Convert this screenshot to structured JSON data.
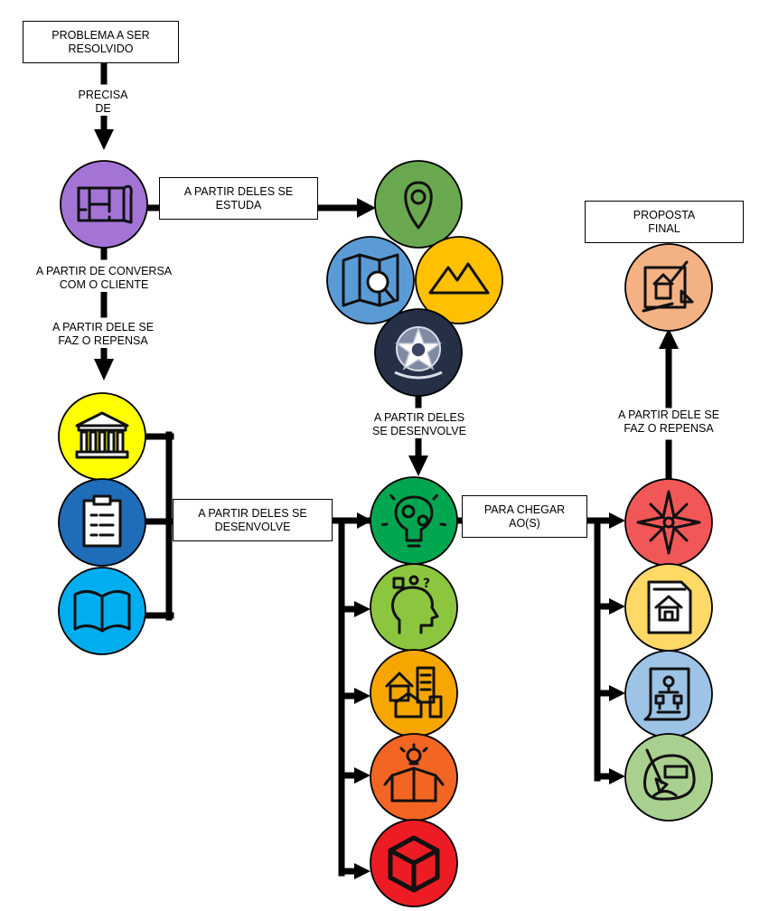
{
  "boxes": {
    "problem": [
      "PROBLEMA A SER",
      "RESOLVIDO"
    ],
    "studies": [
      "A  PARTIR DELES SE",
      "ESTUDA"
    ],
    "develops": [
      "A  PARTIR DELES SE",
      "DESENVOLVE"
    ],
    "reach": [
      "PARA CHEGAR",
      "AO(S)"
    ],
    "final": [
      "PROPOSTA",
      "FINAL"
    ]
  },
  "labels": {
    "needs": [
      "PRECISA",
      "DE"
    ],
    "client": [
      "A PARTIR DE CONVERSA",
      "COM O CLIENTE"
    ],
    "rethink_left": [
      "A  PARTIR DELE SE",
      "FAZ O REPENSA"
    ],
    "develops_mid": [
      "A  PARTIR DELES",
      "SE DESENVOLVE"
    ],
    "rethink_right": [
      "A  PARTIR DELE SE",
      "FAZ O REPENSA"
    ]
  },
  "icons": {
    "plan": {
      "name": "blueprint-plan-icon",
      "color": "#a374d6"
    },
    "location": {
      "name": "location-pin-icon",
      "color": "#6aa84f"
    },
    "map": {
      "name": "map-search-icon",
      "color": "#5b9bd5"
    },
    "terrain": {
      "name": "mountain-terrain-icon",
      "color": "#ffc000"
    },
    "emblem": {
      "name": "national-emblem-icon",
      "color": "#253046"
    },
    "institution": {
      "name": "institution-building-icon",
      "color": "#ffff00"
    },
    "clipboard": {
      "name": "clipboard-icon",
      "color": "#1f6cb8"
    },
    "book": {
      "name": "open-book-icon",
      "color": "#00aeef"
    },
    "gears": {
      "name": "idea-gears-icon",
      "color": "#00a650"
    },
    "head": {
      "name": "thinking-head-icon",
      "color": "#8cc63f"
    },
    "buildings": {
      "name": "city-buildings-icon",
      "color": "#f7a600"
    },
    "ideabox": {
      "name": "idea-box-icon",
      "color": "#f26522"
    },
    "cube": {
      "name": "3d-cube-icon",
      "color": "#ed1c24"
    },
    "compass": {
      "name": "compass-rose-icon",
      "color": "#f25757"
    },
    "houseplan": {
      "name": "house-plan-document-icon",
      "color": "#ffd966"
    },
    "flowchart": {
      "name": "flowchart-scroll-icon",
      "color": "#9dc3e6"
    },
    "construction": {
      "name": "construction-materials-icon",
      "color": "#a9d08e"
    },
    "finaldesign": {
      "name": "architectural-drawing-icon",
      "color": "#f4b183"
    }
  }
}
